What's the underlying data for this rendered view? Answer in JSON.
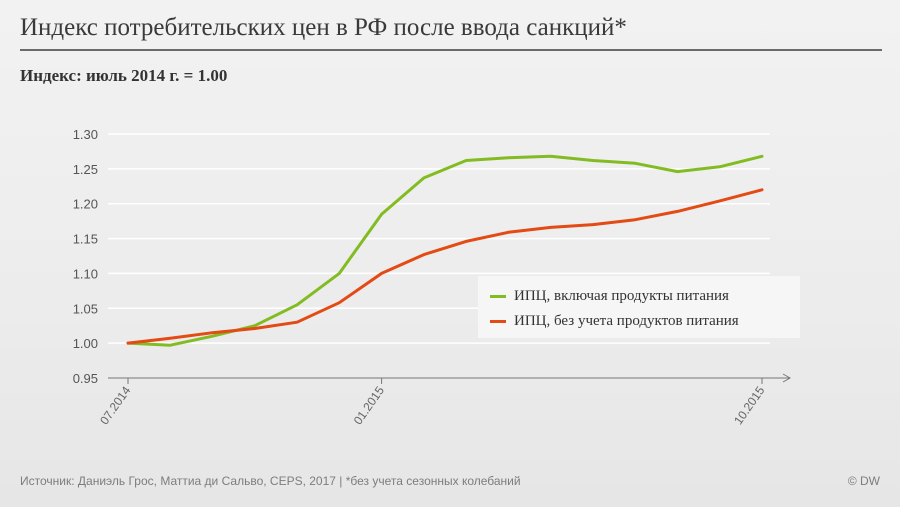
{
  "title": "Индекс потребительских цен в РФ после ввода санкций*",
  "subtitle": "Индекс: июль 2014 г. = 1.00",
  "footer": {
    "source": "Источник: Даниэль Грос, Маттиа ди Сальво, CEPS, 2017 | *без учета сезонных колебаний",
    "credit": "© DW"
  },
  "colors": {
    "series_food": "#82bc22",
    "series_nonfood": "#e34a14",
    "grid": "#ffffff",
    "axis": "#777777"
  },
  "chart_data": {
    "type": "line",
    "x": [
      "07.2014",
      "08.2014",
      "09.2014",
      "10.2014",
      "11.2014",
      "12.2014",
      "01.2015",
      "02.2015",
      "03.2015",
      "04.2015",
      "05.2015",
      "06.2015",
      "07.2015",
      "08.2015",
      "09.2015",
      "10.2015"
    ],
    "x_tick_labels": [
      "07.2014",
      "01.2015",
      "10.2015"
    ],
    "y_ticks": [
      "0.95",
      "1.00",
      "1.05",
      "1.10",
      "1.15",
      "1.20",
      "1.25",
      "1.30"
    ],
    "ylim": [
      0.95,
      1.3
    ],
    "grid": true,
    "legend_position": "center-right",
    "series": [
      {
        "name": "ИПЦ, включая продукты питания",
        "color": "#82bc22",
        "values": [
          1.0,
          0.997,
          1.01,
          1.025,
          1.055,
          1.1,
          1.185,
          1.237,
          1.262,
          1.266,
          1.268,
          1.262,
          1.258,
          1.246,
          1.253,
          1.268
        ]
      },
      {
        "name": "ИПЦ, без учета продуктов питания",
        "color": "#e34a14",
        "values": [
          1.0,
          1.007,
          1.015,
          1.021,
          1.03,
          1.058,
          1.1,
          1.127,
          1.146,
          1.159,
          1.166,
          1.17,
          1.177,
          1.189,
          1.204,
          1.22
        ]
      }
    ]
  }
}
